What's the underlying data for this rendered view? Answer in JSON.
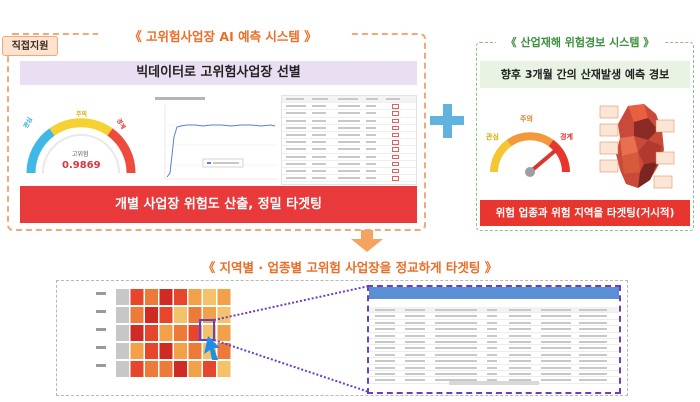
{
  "left": {
    "badge": "직접지원",
    "title": "《 고위험사업장 AI 예측 시스템 》",
    "bigdata": "빅데이터로 고위험사업장 선별",
    "gauge": {
      "label_low": "관심",
      "label_mid": "주의",
      "label_high": "경계",
      "center_text": "고위험",
      "score": "0.9869"
    },
    "bottom_bar": "개별 사업장 위험도 산출,  정밀 타겟팅"
  },
  "right": {
    "title": "《 산업재해 위험경보 시스템 》",
    "forecast": "향후 3개월 간의 산재발생 예측 경보",
    "gauge": {
      "label_low": "관심",
      "label_mid": "주의",
      "label_high": "경계"
    },
    "bottom_bar": "위험 업종과 위험 지역을 타겟팅(거시적)"
  },
  "bottom": {
    "title": "《 지역별 · 업종별 고위험 사업장을  정교하게 타겟팅 》"
  },
  "colors": {
    "orange": "#ea6e27",
    "red": "#e83a3a",
    "green": "#3e8f3e",
    "purple": "#6b3fc0",
    "blue": "#5fb3de"
  }
}
